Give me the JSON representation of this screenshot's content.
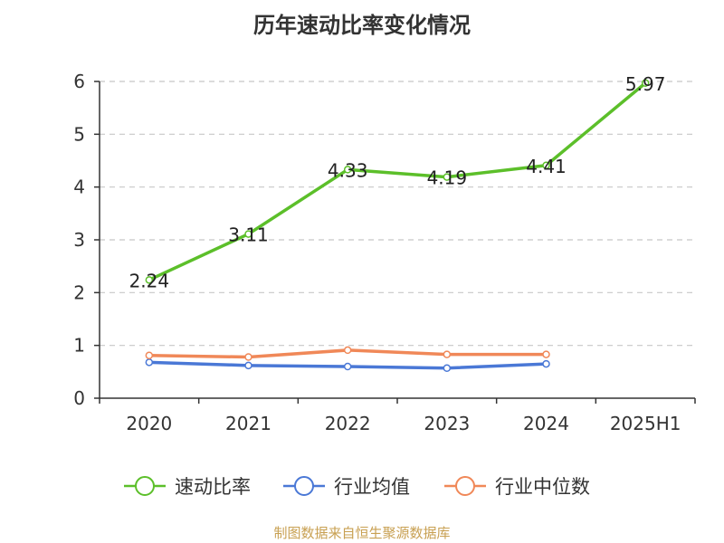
{
  "title": "历年速动比率变化情况",
  "footer": "制图数据来自恒生聚源数据库",
  "chart_data": {
    "type": "line",
    "title": "历年速动比率变化情况",
    "categories": [
      "2020",
      "2021",
      "2022",
      "2023",
      "2024",
      "2025H1"
    ],
    "ylim": [
      0,
      6
    ],
    "yticks": [
      0,
      1,
      2,
      3,
      4,
      5,
      6
    ],
    "grid": true,
    "legend_position": "bottom",
    "series": [
      {
        "name": "速动比率",
        "color": "#5cbf2a",
        "values": [
          2.24,
          3.11,
          4.33,
          4.19,
          4.41,
          5.97
        ],
        "labels": [
          "2.24",
          "3.11",
          "4.33",
          "4.19",
          "4.41",
          "5.97"
        ]
      },
      {
        "name": "行业均值",
        "color": "#4a78d6",
        "values": [
          0.68,
          0.62,
          0.6,
          0.57,
          0.65,
          null
        ]
      },
      {
        "name": "行业中位数",
        "color": "#f08858",
        "values": [
          0.81,
          0.78,
          0.91,
          0.83,
          0.83,
          null
        ]
      }
    ]
  }
}
